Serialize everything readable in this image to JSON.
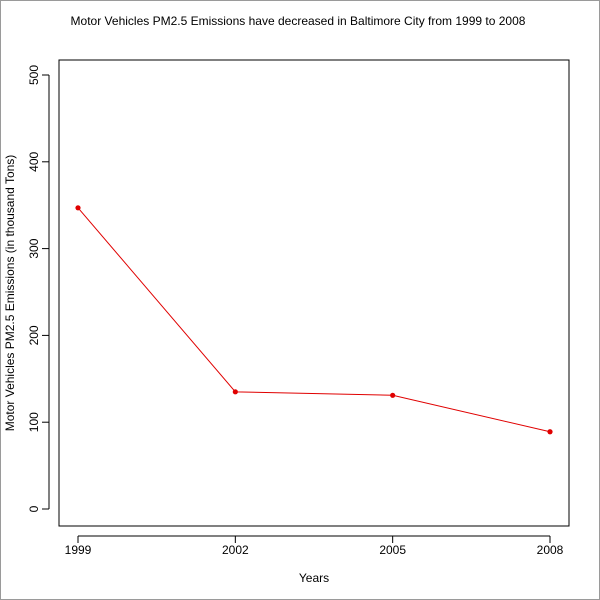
{
  "chart_data": {
    "type": "line",
    "title": "Motor Vehicles PM2.5 Emissions have decreased in Baltimore City from 1999 to 2008",
    "xlabel": "Years",
    "ylabel": "Motor Vehicles PM2.5 Emissions (in thousand Tons)",
    "x": [
      1999,
      2002,
      2005,
      2008
    ],
    "x_tick_labels": [
      "1999",
      "2002",
      "2005",
      "2008"
    ],
    "y": [
      347,
      135,
      131,
      89
    ],
    "ylim": [
      0,
      500
    ],
    "y_ticks": [
      0,
      100,
      200,
      300,
      400,
      500
    ],
    "y_tick_labels": [
      "0",
      "100",
      "200",
      "300",
      "400",
      "500"
    ],
    "grid": false,
    "legend": "none",
    "line_color": "#e00000",
    "marker_color": "#e00000"
  }
}
